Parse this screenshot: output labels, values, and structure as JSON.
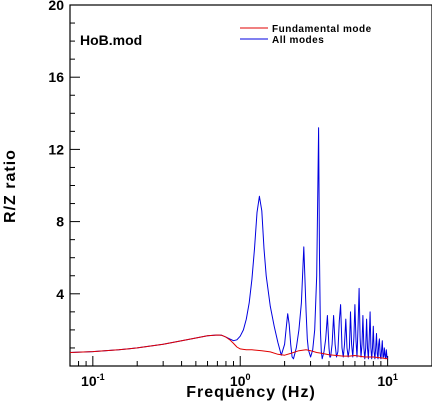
{
  "chart_data": {
    "type": "line",
    "title": "",
    "annotation": "HoB.mod",
    "xlabel": "Frequency (Hz)",
    "ylabel": "R/Z ratio",
    "xscale": "log",
    "xlim": [
      0.07,
      20
    ],
    "ylim": [
      0,
      20
    ],
    "yticks": [
      4,
      8,
      12,
      16,
      20
    ],
    "ytick_labels": [
      "4",
      "8",
      "12",
      "16",
      "20"
    ],
    "xticks": [
      0.1,
      1,
      10
    ],
    "xtick_labels": [
      {
        "base": "10",
        "exp": "-1"
      },
      {
        "base": "10",
        "exp": "0"
      },
      {
        "base": "10",
        "exp": "1"
      }
    ],
    "grid": false,
    "legend": "top-right",
    "series": [
      {
        "name": "Fundamental mode",
        "color": "#e00000",
        "x": [
          0.07,
          0.1,
          0.15,
          0.2,
          0.3,
          0.4,
          0.5,
          0.6,
          0.7,
          0.75,
          0.8,
          0.85,
          0.9,
          0.95,
          1.0,
          1.05,
          1.1,
          1.2,
          1.4,
          1.6,
          1.8,
          2.0,
          2.2,
          2.5,
          2.8,
          3.0,
          3.3,
          3.6,
          4.0,
          4.5,
          5.0,
          5.5,
          6.0,
          7.0,
          8.0,
          9.0,
          10.0
        ],
        "y": [
          0.75,
          0.8,
          0.9,
          1.0,
          1.2,
          1.4,
          1.55,
          1.68,
          1.72,
          1.7,
          1.6,
          1.45,
          1.25,
          1.05,
          0.95,
          0.92,
          0.9,
          0.9,
          0.85,
          0.78,
          0.65,
          0.6,
          0.7,
          0.85,
          0.9,
          0.85,
          0.75,
          0.7,
          0.62,
          0.58,
          0.55,
          0.55,
          0.58,
          0.5,
          0.5,
          0.45,
          0.4
        ]
      },
      {
        "name": "All modes",
        "color": "#0000e0",
        "x": [
          0.07,
          0.1,
          0.15,
          0.2,
          0.3,
          0.4,
          0.5,
          0.6,
          0.7,
          0.75,
          0.8,
          0.85,
          0.9,
          0.95,
          1.0,
          1.05,
          1.1,
          1.15,
          1.2,
          1.25,
          1.3,
          1.35,
          1.4,
          1.45,
          1.5,
          1.6,
          1.7,
          1.8,
          1.9,
          2.0,
          2.05,
          2.1,
          2.15,
          2.2,
          2.25,
          2.3,
          2.4,
          2.5,
          2.6,
          2.7,
          2.8,
          2.85,
          2.9,
          3.0,
          3.1,
          3.2,
          3.3,
          3.4,
          3.45,
          3.5,
          3.55,
          3.6,
          3.7,
          3.8,
          3.9,
          4.0,
          4.05,
          4.1,
          4.2,
          4.3,
          4.4,
          4.5,
          4.6,
          4.7,
          4.8,
          4.9,
          5.0,
          5.1,
          5.2,
          5.3,
          5.4,
          5.5,
          5.6,
          5.7,
          5.8,
          5.9,
          6.0,
          6.1,
          6.2,
          6.3,
          6.4,
          6.5,
          6.6,
          6.7,
          6.8,
          6.9,
          7.0,
          7.1,
          7.2,
          7.3,
          7.4,
          7.5,
          7.6,
          7.7,
          7.8,
          7.9,
          8.0,
          8.1,
          8.2,
          8.3,
          8.4,
          8.5,
          8.6,
          8.7,
          8.8,
          8.9,
          9.0,
          9.1,
          9.2,
          9.3,
          9.4,
          9.5,
          9.6,
          9.7,
          9.8,
          9.9,
          10.0
        ],
        "y": [
          0.75,
          0.8,
          0.9,
          1.0,
          1.2,
          1.4,
          1.55,
          1.68,
          1.72,
          1.7,
          1.6,
          1.5,
          1.4,
          1.45,
          1.65,
          2.0,
          2.6,
          3.5,
          4.8,
          6.5,
          8.5,
          9.4,
          8.6,
          6.5,
          5.0,
          3.3,
          2.2,
          1.3,
          0.6,
          1.2,
          2.1,
          2.9,
          2.3,
          1.2,
          0.5,
          0.4,
          1.0,
          2.0,
          3.5,
          6.6,
          3.0,
          1.5,
          0.9,
          0.5,
          0.9,
          2.0,
          5.0,
          13.2,
          6.0,
          2.0,
          0.8,
          0.4,
          0.8,
          1.5,
          2.8,
          1.0,
          0.5,
          0.5,
          1.2,
          2.8,
          1.2,
          0.5,
          0.8,
          2.5,
          3.4,
          1.0,
          0.5,
          1.2,
          2.6,
          1.0,
          0.5,
          1.0,
          3.0,
          1.2,
          0.5,
          1.6,
          3.4,
          1.4,
          0.5,
          2.3,
          4.3,
          1.6,
          0.5,
          1.2,
          2.8,
          1.0,
          0.4,
          1.0,
          2.6,
          1.0,
          0.4,
          1.5,
          3.0,
          1.0,
          0.4,
          1.0,
          2.2,
          0.8,
          0.4,
          1.0,
          1.8,
          0.7,
          0.4,
          1.2,
          1.5,
          0.6,
          0.4,
          0.9,
          1.4,
          0.5,
          0.5,
          1.0,
          0.6,
          0.4,
          0.9,
          0.5,
          0.4
        ]
      }
    ]
  }
}
